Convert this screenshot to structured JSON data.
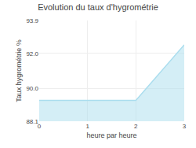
{
  "chart_data": {
    "type": "area",
    "title": "Evolution du taux d'hygrométrie",
    "x_label": "heure par heure",
    "y_label": "Taux hygrométrie %",
    "x": [
      0,
      1,
      2,
      3
    ],
    "values": [
      89.3,
      89.3,
      89.3,
      92.5
    ],
    "color": "#aaddee",
    "xlim": [
      0,
      3
    ],
    "ylim": [
      88.1,
      93.9
    ],
    "xticks": [
      0,
      1,
      2,
      3
    ],
    "yticks": [
      88.1,
      {
        "value": 90,
        "label": "90.0"
      },
      {
        "value": 92,
        "label": "92.0"
      },
      93.9
    ],
    "grid": true
  }
}
